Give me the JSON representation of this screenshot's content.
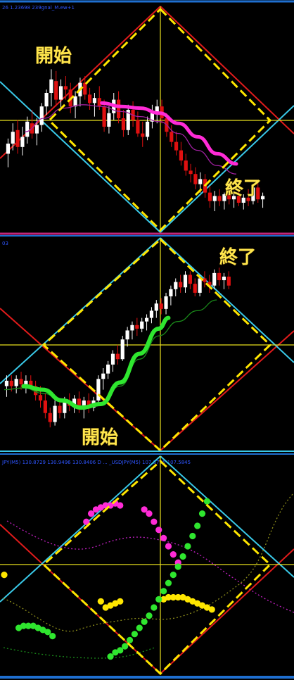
{
  "colors": {
    "background": "#000000",
    "separator_blue": "#1f6fd0",
    "separator_magenta": "#c0267a",
    "red_lines": "#e01b1b",
    "cyan_lines": "#39c9e8",
    "yellow_lines": "#e8e01e",
    "diamond_dash": "#ffe600",
    "bull": "#ffffff",
    "bear": "#e01010",
    "ma_magenta": "#ff2bd6",
    "ma_green": "#2fe62f",
    "header_text": "#2e55ff",
    "annotation": "#ffe64d"
  },
  "panels": [
    {
      "header": "26 1.23698 239gnal_M.ew+1"
    },
    {
      "header": "03"
    },
    {
      "header": "JPY(M5) 130.8729 130.9496 130.8406  D  ... _USDJPY(M5) 107.5795 107.5845"
    }
  ],
  "annotations": {
    "p1_start": "開始",
    "p1_end": "終了",
    "p2_start": "開始",
    "p2_end": "終了"
  },
  "chart_data": [
    {
      "type": "candlestick",
      "title": "",
      "ylim": [
        0,
        100
      ],
      "x_range": [
        0,
        60
      ],
      "candles": [
        {
          "o": 34,
          "h": 43,
          "l": 26,
          "c": 40
        },
        {
          "o": 40,
          "h": 52,
          "l": 36,
          "c": 47
        },
        {
          "o": 48,
          "h": 54,
          "l": 34,
          "c": 38
        },
        {
          "o": 38,
          "h": 50,
          "l": 33,
          "c": 44
        },
        {
          "o": 44,
          "h": 56,
          "l": 40,
          "c": 53
        },
        {
          "o": 52,
          "h": 60,
          "l": 43,
          "c": 46
        },
        {
          "o": 46,
          "h": 55,
          "l": 39,
          "c": 51
        },
        {
          "o": 51,
          "h": 64,
          "l": 47,
          "c": 62
        },
        {
          "o": 62,
          "h": 72,
          "l": 57,
          "c": 70
        },
        {
          "o": 70,
          "h": 84,
          "l": 62,
          "c": 78
        },
        {
          "o": 77,
          "h": 83,
          "l": 62,
          "c": 66
        },
        {
          "o": 66,
          "h": 78,
          "l": 60,
          "c": 74
        },
        {
          "o": 74,
          "h": 80,
          "l": 66,
          "c": 72
        },
        {
          "o": 72,
          "h": 76,
          "l": 58,
          "c": 62
        },
        {
          "o": 62,
          "h": 71,
          "l": 55,
          "c": 68
        },
        {
          "o": 68,
          "h": 79,
          "l": 62,
          "c": 76
        },
        {
          "o": 76,
          "h": 80,
          "l": 66,
          "c": 69
        },
        {
          "o": 69,
          "h": 73,
          "l": 60,
          "c": 64
        },
        {
          "o": 64,
          "h": 70,
          "l": 56,
          "c": 67
        },
        {
          "o": 67,
          "h": 74,
          "l": 60,
          "c": 62
        },
        {
          "o": 62,
          "h": 66,
          "l": 47,
          "c": 50
        },
        {
          "o": 50,
          "h": 62,
          "l": 46,
          "c": 58
        },
        {
          "o": 58,
          "h": 70,
          "l": 54,
          "c": 66
        },
        {
          "o": 66,
          "h": 71,
          "l": 52,
          "c": 55
        },
        {
          "o": 55,
          "h": 60,
          "l": 44,
          "c": 48
        },
        {
          "o": 48,
          "h": 63,
          "l": 45,
          "c": 60
        },
        {
          "o": 60,
          "h": 65,
          "l": 50,
          "c": 54
        },
        {
          "o": 54,
          "h": 59,
          "l": 44,
          "c": 46
        },
        {
          "o": 46,
          "h": 53,
          "l": 38,
          "c": 44
        },
        {
          "o": 44,
          "h": 56,
          "l": 42,
          "c": 53
        },
        {
          "o": 53,
          "h": 63,
          "l": 49,
          "c": 58
        },
        {
          "o": 58,
          "h": 66,
          "l": 52,
          "c": 62
        },
        {
          "o": 62,
          "h": 66,
          "l": 52,
          "c": 55
        },
        {
          "o": 55,
          "h": 58,
          "l": 44,
          "c": 47
        },
        {
          "o": 47,
          "h": 51,
          "l": 38,
          "c": 41
        },
        {
          "o": 41,
          "h": 47,
          "l": 33,
          "c": 36
        },
        {
          "o": 36,
          "h": 41,
          "l": 27,
          "c": 30
        },
        {
          "o": 30,
          "h": 34,
          "l": 21,
          "c": 24
        },
        {
          "o": 24,
          "h": 28,
          "l": 17,
          "c": 22
        },
        {
          "o": 22,
          "h": 26,
          "l": 13,
          "c": 16
        },
        {
          "o": 16,
          "h": 23,
          "l": 11,
          "c": 19
        },
        {
          "o": 19,
          "h": 22,
          "l": 8,
          "c": 11
        },
        {
          "o": 11,
          "h": 15,
          "l": 2,
          "c": 6
        },
        {
          "o": 6,
          "h": 12,
          "l": 0,
          "c": 9
        },
        {
          "o": 9,
          "h": 13,
          "l": 3,
          "c": 6
        },
        {
          "o": 6,
          "h": 11,
          "l": 1,
          "c": 10
        },
        {
          "o": 10,
          "h": 14,
          "l": 4,
          "c": 7
        },
        {
          "o": 7,
          "h": 12,
          "l": 2,
          "c": 9
        },
        {
          "o": 9,
          "h": 12,
          "l": 3,
          "c": 5
        },
        {
          "o": 5,
          "h": 10,
          "l": 1,
          "c": 8
        },
        {
          "o": 8,
          "h": 13,
          "l": 3,
          "c": 6
        },
        {
          "o": 6,
          "h": 16,
          "l": 4,
          "c": 14
        },
        {
          "o": 14,
          "h": 17,
          "l": 5,
          "c": 7
        },
        {
          "o": 7,
          "h": 11,
          "l": 2,
          "c": 9
        }
      ],
      "ma": [
        [
          4,
          47
        ],
        [
          8,
          55
        ],
        [
          12,
          61
        ],
        [
          16,
          63
        ],
        [
          20,
          62
        ],
        [
          24,
          59
        ],
        [
          28,
          56
        ],
        [
          32,
          53
        ],
        [
          36,
          46
        ],
        [
          40,
          36
        ],
        [
          44,
          27
        ],
        [
          48,
          22
        ]
      ],
      "ma_highlight": [
        [
          20,
          64
        ],
        [
          24,
          62
        ],
        [
          28,
          61
        ],
        [
          32,
          58
        ],
        [
          36,
          52
        ],
        [
          40,
          44
        ],
        [
          44,
          34
        ],
        [
          48,
          28
        ]
      ]
    },
    {
      "type": "candlestick",
      "title": "",
      "ylim": [
        0,
        100
      ],
      "x_range": [
        0,
        60
      ],
      "candles": [
        {
          "o": 30,
          "h": 36,
          "l": 24,
          "c": 33
        },
        {
          "o": 33,
          "h": 36,
          "l": 27,
          "c": 30
        },
        {
          "o": 30,
          "h": 36,
          "l": 26,
          "c": 34
        },
        {
          "o": 34,
          "h": 38,
          "l": 28,
          "c": 31
        },
        {
          "o": 31,
          "h": 36,
          "l": 26,
          "c": 33
        },
        {
          "o": 33,
          "h": 36,
          "l": 28,
          "c": 30
        },
        {
          "o": 30,
          "h": 33,
          "l": 22,
          "c": 25
        },
        {
          "o": 25,
          "h": 30,
          "l": 18,
          "c": 22
        },
        {
          "o": 22,
          "h": 26,
          "l": 12,
          "c": 15
        },
        {
          "o": 15,
          "h": 18,
          "l": 7,
          "c": 10
        },
        {
          "o": 10,
          "h": 22,
          "l": 8,
          "c": 19
        },
        {
          "o": 19,
          "h": 23,
          "l": 12,
          "c": 15
        },
        {
          "o": 15,
          "h": 24,
          "l": 12,
          "c": 21
        },
        {
          "o": 21,
          "h": 26,
          "l": 16,
          "c": 19
        },
        {
          "o": 19,
          "h": 25,
          "l": 15,
          "c": 23
        },
        {
          "o": 23,
          "h": 27,
          "l": 15,
          "c": 17
        },
        {
          "o": 17,
          "h": 24,
          "l": 12,
          "c": 22
        },
        {
          "o": 22,
          "h": 26,
          "l": 15,
          "c": 18
        },
        {
          "o": 18,
          "h": 24,
          "l": 16,
          "c": 22
        },
        {
          "o": 22,
          "h": 36,
          "l": 20,
          "c": 34
        },
        {
          "o": 34,
          "h": 40,
          "l": 28,
          "c": 37
        },
        {
          "o": 37,
          "h": 44,
          "l": 34,
          "c": 42
        },
        {
          "o": 42,
          "h": 50,
          "l": 38,
          "c": 48
        },
        {
          "o": 48,
          "h": 53,
          "l": 42,
          "c": 45
        },
        {
          "o": 45,
          "h": 58,
          "l": 44,
          "c": 56
        },
        {
          "o": 56,
          "h": 63,
          "l": 52,
          "c": 61
        },
        {
          "o": 61,
          "h": 66,
          "l": 56,
          "c": 64
        },
        {
          "o": 64,
          "h": 68,
          "l": 58,
          "c": 62
        },
        {
          "o": 62,
          "h": 68,
          "l": 60,
          "c": 66
        },
        {
          "o": 66,
          "h": 70,
          "l": 61,
          "c": 68
        },
        {
          "o": 68,
          "h": 74,
          "l": 65,
          "c": 72
        },
        {
          "o": 72,
          "h": 78,
          "l": 68,
          "c": 76
        },
        {
          "o": 76,
          "h": 79,
          "l": 70,
          "c": 73
        },
        {
          "o": 73,
          "h": 82,
          "l": 70,
          "c": 80
        },
        {
          "o": 80,
          "h": 86,
          "l": 75,
          "c": 84
        },
        {
          "o": 84,
          "h": 90,
          "l": 80,
          "c": 88
        },
        {
          "o": 88,
          "h": 92,
          "l": 82,
          "c": 85
        },
        {
          "o": 85,
          "h": 94,
          "l": 82,
          "c": 92
        },
        {
          "o": 92,
          "h": 94,
          "l": 84,
          "c": 87
        },
        {
          "o": 87,
          "h": 90,
          "l": 80,
          "c": 82
        },
        {
          "o": 82,
          "h": 92,
          "l": 80,
          "c": 90
        },
        {
          "o": 90,
          "h": 94,
          "l": 85,
          "c": 88
        },
        {
          "o": 88,
          "h": 92,
          "l": 82,
          "c": 86
        },
        {
          "o": 86,
          "h": 95,
          "l": 84,
          "c": 93
        },
        {
          "o": 93,
          "h": 96,
          "l": 86,
          "c": 89
        },
        {
          "o": 89,
          "h": 93,
          "l": 84,
          "c": 91
        },
        {
          "o": 91,
          "h": 94,
          "l": 84,
          "c": 86
        }
      ],
      "ma": [
        [
          0,
          28
        ],
        [
          4,
          29
        ],
        [
          8,
          26
        ],
        [
          12,
          22
        ],
        [
          16,
          19
        ],
        [
          20,
          20
        ],
        [
          24,
          30
        ],
        [
          28,
          45
        ],
        [
          32,
          58
        ],
        [
          36,
          66
        ],
        [
          40,
          72
        ],
        [
          44,
          78
        ]
      ],
      "ma_highlight": [
        [
          4,
          30
        ],
        [
          8,
          28
        ],
        [
          12,
          22
        ],
        [
          16,
          18
        ],
        [
          20,
          20
        ],
        [
          24,
          32
        ],
        [
          28,
          48
        ],
        [
          32,
          62
        ],
        [
          34,
          68
        ]
      ]
    },
    {
      "type": "scatter",
      "title": "",
      "ylim": [
        0,
        100
      ],
      "x_range": [
        0,
        60
      ],
      "series": [
        {
          "points": [
            [
              17,
              72
            ],
            [
              18,
              76
            ],
            [
              19,
              78
            ],
            [
              20,
              79
            ],
            [
              21,
              80
            ],
            [
              22,
              80
            ],
            [
              23,
              81
            ],
            [
              24,
              80
            ],
            [
              29,
              78
            ],
            [
              30,
              76
            ],
            [
              31,
              72
            ],
            [
              32,
              68
            ],
            [
              33,
              64
            ],
            [
              34,
              60
            ],
            [
              35,
              56
            ],
            [
              36,
              52
            ]
          ]
        },
        {
          "points": [
            [
              0,
              46
            ],
            [
              20,
              33
            ],
            [
              21,
              30
            ],
            [
              22,
              31
            ],
            [
              23,
              32
            ],
            [
              24,
              33
            ],
            [
              33,
              34
            ],
            [
              34,
              35
            ],
            [
              35,
              35
            ],
            [
              36,
              35
            ],
            [
              37,
              35
            ],
            [
              38,
              34
            ],
            [
              39,
              33
            ],
            [
              40,
              32
            ],
            [
              41,
              31
            ],
            [
              42,
              30
            ],
            [
              43,
              29
            ]
          ]
        },
        {
          "points": [
            [
              3,
              20
            ],
            [
              4,
              21
            ],
            [
              5,
              21
            ],
            [
              6,
              21
            ],
            [
              7,
              20
            ],
            [
              8,
              19
            ],
            [
              9,
              18
            ],
            [
              10,
              16
            ],
            [
              22,
              6
            ],
            [
              23,
              8
            ],
            [
              24,
              9
            ],
            [
              25,
              11
            ],
            [
              26,
              14
            ],
            [
              27,
              17
            ],
            [
              28,
              20
            ],
            [
              29,
              23
            ],
            [
              30,
              26
            ],
            [
              31,
              30
            ],
            [
              32,
              34
            ],
            [
              33,
              38
            ],
            [
              34,
              42
            ],
            [
              35,
              46
            ],
            [
              36,
              50
            ],
            [
              37,
              55
            ],
            [
              38,
              60
            ],
            [
              39,
              65
            ],
            [
              40,
              70
            ],
            [
              41,
              76
            ],
            [
              42,
              82
            ]
          ]
        }
      ]
    }
  ]
}
